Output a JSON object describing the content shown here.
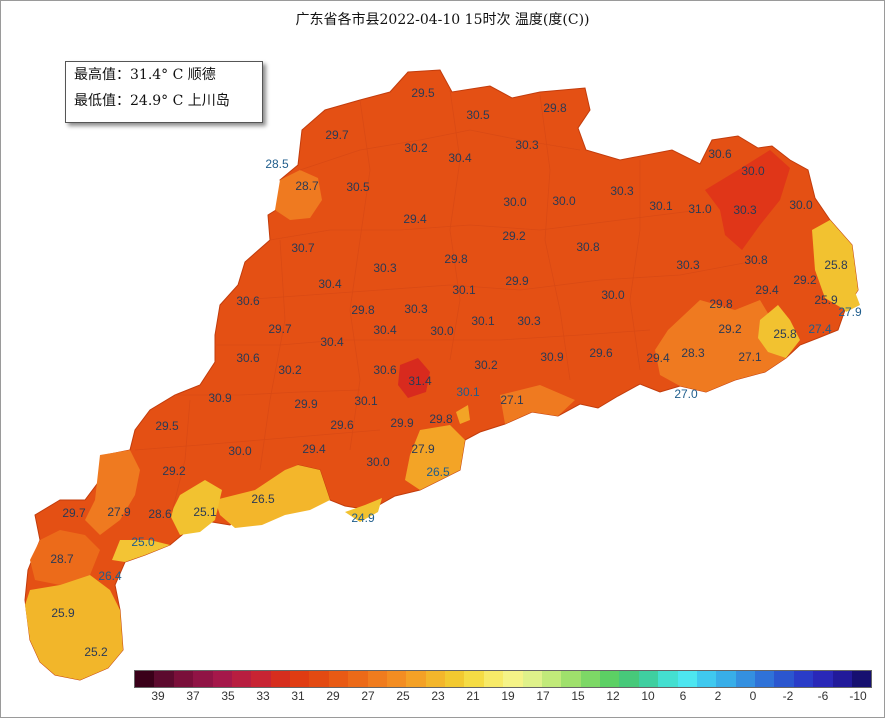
{
  "title": "广东省各市县2022-04-10 15时次 温度(度(C))",
  "info": {
    "max_line": "最高值：31.4° C 顺德",
    "min_line": "最低值：24.9° C 上川岛"
  },
  "map_labels": [
    {
      "name": "station-label",
      "text": "29.5",
      "inside": true
    },
    {
      "name": "station-label",
      "text": "30.5",
      "inside": true
    },
    {
      "name": "station-label",
      "text": "29.8",
      "inside": true
    },
    {
      "name": "station-label",
      "text": "29.7",
      "inside": true
    },
    {
      "name": "station-label",
      "text": "30.2",
      "inside": true
    },
    {
      "name": "station-label",
      "text": "30.4",
      "inside": true
    },
    {
      "name": "station-label",
      "text": "30.3",
      "inside": true
    },
    {
      "name": "station-label",
      "text": "28.5",
      "inside": false
    },
    {
      "name": "station-label",
      "text": "28.7",
      "inside": true
    },
    {
      "name": "station-label",
      "text": "30.5",
      "inside": true
    },
    {
      "name": "station-label",
      "text": "30.6",
      "inside": true
    },
    {
      "name": "station-label",
      "text": "30.0",
      "inside": true
    },
    {
      "name": "station-label",
      "text": "29.4",
      "inside": true
    },
    {
      "name": "station-label",
      "text": "30.3",
      "inside": true
    },
    {
      "name": "station-label",
      "text": "30.0",
      "inside": true
    },
    {
      "name": "station-label",
      "text": "30.0",
      "inside": true
    },
    {
      "name": "station-label",
      "text": "30.1",
      "inside": true
    },
    {
      "name": "station-label",
      "text": "31.0",
      "inside": true
    },
    {
      "name": "station-label",
      "text": "30.3",
      "inside": true
    },
    {
      "name": "station-label",
      "text": "30.0",
      "inside": true
    },
    {
      "name": "station-label",
      "text": "29.2",
      "inside": true
    },
    {
      "name": "station-label",
      "text": "30.7",
      "inside": true
    },
    {
      "name": "station-label",
      "text": "30.8",
      "inside": true
    },
    {
      "name": "station-label",
      "text": "25.8",
      "inside": true
    },
    {
      "name": "station-label",
      "text": "29.8",
      "inside": true
    },
    {
      "name": "station-label",
      "text": "30.3",
      "inside": true
    },
    {
      "name": "station-label",
      "text": "30.3",
      "inside": true
    },
    {
      "name": "station-label",
      "text": "30.8",
      "inside": true
    },
    {
      "name": "station-label",
      "text": "29.2",
      "inside": true
    },
    {
      "name": "station-label",
      "text": "30.4",
      "inside": true
    },
    {
      "name": "station-label",
      "text": "29.9",
      "inside": true
    },
    {
      "name": "station-label",
      "text": "30.1",
      "inside": true
    },
    {
      "name": "station-label",
      "text": "29.4",
      "inside": true
    },
    {
      "name": "station-label",
      "text": "30.6",
      "inside": true
    },
    {
      "name": "station-label",
      "text": "30.0",
      "inside": true
    },
    {
      "name": "station-label",
      "text": "25.9",
      "inside": true
    },
    {
      "name": "station-label",
      "text": "27.9",
      "inside": false
    },
    {
      "name": "station-label",
      "text": "29.8",
      "inside": true
    },
    {
      "name": "station-label",
      "text": "30.3",
      "inside": true
    },
    {
      "name": "station-label",
      "text": "29.8",
      "inside": true
    },
    {
      "name": "station-label",
      "text": "29.7",
      "inside": true
    },
    {
      "name": "station-label",
      "text": "30.4",
      "inside": true
    },
    {
      "name": "station-label",
      "text": "30.0",
      "inside": true
    },
    {
      "name": "station-label",
      "text": "30.1",
      "inside": true
    },
    {
      "name": "station-label",
      "text": "30.3",
      "inside": true
    },
    {
      "name": "station-label",
      "text": "29.2",
      "inside": true
    },
    {
      "name": "station-label",
      "text": "25.8",
      "inside": true
    },
    {
      "name": "station-label",
      "text": "27.4",
      "inside": false
    },
    {
      "name": "station-label",
      "text": "30.4",
      "inside": true
    },
    {
      "name": "station-label",
      "text": "30.6",
      "inside": true
    },
    {
      "name": "station-label",
      "text": "30.2",
      "inside": true
    },
    {
      "name": "station-label",
      "text": "30.6",
      "inside": true
    },
    {
      "name": "station-label",
      "text": "31.4",
      "inside": true
    },
    {
      "name": "station-label",
      "text": "30.2",
      "inside": true
    },
    {
      "name": "station-label",
      "text": "30.9",
      "inside": true
    },
    {
      "name": "station-label",
      "text": "29.6",
      "inside": true
    },
    {
      "name": "station-label",
      "text": "29.4",
      "inside": true
    },
    {
      "name": "station-label",
      "text": "28.3",
      "inside": true
    },
    {
      "name": "station-label",
      "text": "27.1",
      "inside": true
    },
    {
      "name": "station-label",
      "text": "30.9",
      "inside": true
    },
    {
      "name": "station-label",
      "text": "29.9",
      "inside": true
    },
    {
      "name": "station-label",
      "text": "30.1",
      "inside": true
    },
    {
      "name": "station-label",
      "text": "30.1",
      "inside": false
    },
    {
      "name": "station-label",
      "text": "27.1",
      "inside": true
    },
    {
      "name": "station-label",
      "text": "27.0",
      "inside": false
    },
    {
      "name": "station-label",
      "text": "29.5",
      "inside": true
    },
    {
      "name": "station-label",
      "text": "29.6",
      "inside": true
    },
    {
      "name": "station-label",
      "text": "29.9",
      "inside": true
    },
    {
      "name": "station-label",
      "text": "29.8",
      "inside": true
    },
    {
      "name": "station-label",
      "text": "29.4",
      "inside": true
    },
    {
      "name": "station-label",
      "text": "30.0",
      "inside": true
    },
    {
      "name": "station-label",
      "text": "27.9",
      "inside": true
    },
    {
      "name": "station-label",
      "text": "29.2",
      "inside": true
    },
    {
      "name": "station-label",
      "text": "30.0",
      "inside": true
    },
    {
      "name": "station-label",
      "text": "26.5",
      "inside": false
    },
    {
      "name": "station-label",
      "text": "26.5",
      "inside": true
    },
    {
      "name": "station-label",
      "text": "29.7",
      "inside": true
    },
    {
      "name": "station-label",
      "text": "27.9",
      "inside": true
    },
    {
      "name": "station-label",
      "text": "28.6",
      "inside": true
    },
    {
      "name": "station-label",
      "text": "25.1",
      "inside": true
    },
    {
      "name": "station-label",
      "text": "24.9",
      "inside": false
    },
    {
      "name": "station-label",
      "text": "25.0",
      "inside": false
    },
    {
      "name": "station-label",
      "text": "28.7",
      "inside": true
    },
    {
      "name": "station-label",
      "text": "26.4",
      "inside": false
    },
    {
      "name": "station-label",
      "text": "25.9",
      "inside": true
    },
    {
      "name": "station-label",
      "text": "25.2",
      "inside": true
    }
  ],
  "colorbar": {
    "colors": [
      "#3a0019",
      "#5c0a2e",
      "#7a0f3a",
      "#901445",
      "#a5184a",
      "#b81e40",
      "#c82433",
      "#d62e1e",
      "#e03c12",
      "#e34a12",
      "#e85a14",
      "#ec6a18",
      "#f07c1e",
      "#f38d22",
      "#f4a126",
      "#f3b62b",
      "#f2c930",
      "#f5dc44",
      "#f7ea68",
      "#f5f387",
      "#dff18a",
      "#c1ea7a",
      "#9fe06c",
      "#7dd866",
      "#5cd064",
      "#47c97a",
      "#3fcfa0",
      "#44dfd0",
      "#4de6f0",
      "#3fc9ef",
      "#38aee8",
      "#3490e0",
      "#2f72d8",
      "#2b56cf",
      "#2a3cc8",
      "#2a28b8",
      "#221a9a",
      "#161070"
    ],
    "ticks": [
      "39",
      "37",
      "35",
      "33",
      "31",
      "29",
      "27",
      "25",
      "23",
      "21",
      "19",
      "17",
      "15",
      "12",
      "10",
      "6",
      "2",
      "0",
      "-2",
      "-6",
      "-10"
    ]
  }
}
